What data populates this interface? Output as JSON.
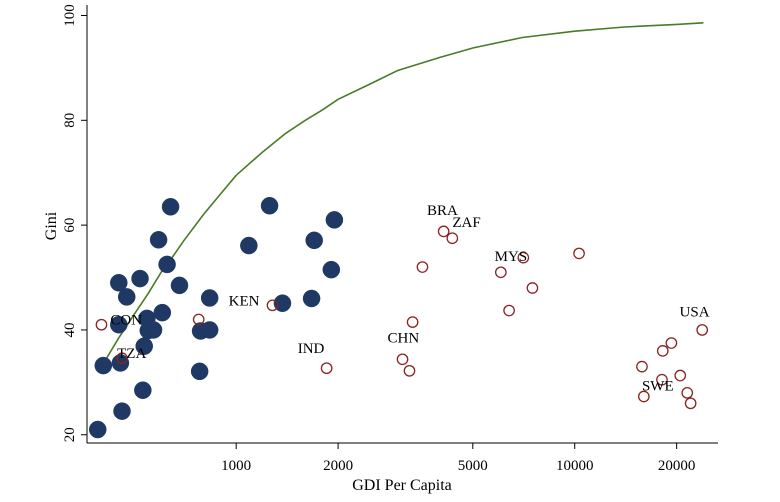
{
  "chart_data": {
    "type": "scatter",
    "title": "",
    "xlabel": "GDI Per Capita",
    "ylabel": "Gini",
    "xscale": "log",
    "xlim": [
      370,
      26500
    ],
    "ylim": [
      19,
      102
    ],
    "grid": false,
    "x_ticks": [
      {
        "value": 1000,
        "label": "1000"
      },
      {
        "value": 2000,
        "label": "2000"
      },
      {
        "value": 5000,
        "label": "5000"
      },
      {
        "value": 10000,
        "label": "10000"
      },
      {
        "value": 20000,
        "label": "20000"
      }
    ],
    "y_ticks": [
      {
        "value": 20,
        "label": "20"
      },
      {
        "value": 40,
        "label": "40"
      },
      {
        "value": 60,
        "label": "60"
      },
      {
        "value": 80,
        "label": "80"
      },
      {
        "value": 100,
        "label": "100"
      }
    ],
    "series": [
      {
        "style": "filled",
        "color": "#1f3864",
        "points": [
          [
            390,
            21
          ],
          [
            405,
            33.2
          ],
          [
            450,
            49
          ],
          [
            450,
            41
          ],
          [
            455,
            33.7
          ],
          [
            460,
            24.5
          ],
          [
            475,
            46.3
          ],
          [
            520,
            49.8
          ],
          [
            530,
            28.5
          ],
          [
            535,
            36.9
          ],
          [
            545,
            42.2
          ],
          [
            550,
            39.9
          ],
          [
            570,
            40
          ],
          [
            590,
            57.2
          ],
          [
            605,
            43.3
          ],
          [
            625,
            52.5
          ],
          [
            640,
            63.5
          ],
          [
            680,
            48.5
          ],
          [
            780,
            32.1
          ],
          [
            785,
            39.8
          ],
          [
            835,
            46.1
          ],
          [
            835,
            40
          ],
          [
            1090,
            56.1
          ],
          [
            1255,
            63.7
          ],
          [
            1370,
            45.1
          ],
          [
            1670,
            46
          ],
          [
            1700,
            57.1
          ],
          [
            1910,
            51.5
          ],
          [
            1950,
            61
          ]
        ]
      },
      {
        "style": "hollow",
        "color": "#8b2323",
        "points": [
          [
            400,
            41
          ],
          [
            460,
            34.6
          ],
          [
            775,
            42
          ],
          [
            1280,
            44.7
          ],
          [
            1850,
            32.7
          ],
          [
            3100,
            34.4
          ],
          [
            3250,
            32.2
          ],
          [
            3320,
            41.5
          ],
          [
            3550,
            52
          ],
          [
            4100,
            58.8
          ],
          [
            4350,
            57.5
          ],
          [
            6050,
            51
          ],
          [
            6400,
            43.7
          ],
          [
            7050,
            53.8
          ],
          [
            7500,
            48
          ],
          [
            10300,
            54.6
          ],
          [
            15800,
            33
          ],
          [
            16000,
            27.3
          ],
          [
            18100,
            30.5
          ],
          [
            18200,
            36
          ],
          [
            19300,
            37.5
          ],
          [
            20500,
            31.3
          ],
          [
            21500,
            28
          ],
          [
            22000,
            26
          ],
          [
            23800,
            40
          ]
        ]
      }
    ],
    "labels": [
      {
        "text": "CON",
        "x": 425,
        "y": 41
      },
      {
        "text": "TZA",
        "x": 445,
        "y": 34.6
      },
      {
        "text": "KEN",
        "x": 950,
        "y": 44.7
      },
      {
        "text": "IND",
        "x": 1520,
        "y": 35.6
      },
      {
        "text": "CHN",
        "x": 2800,
        "y": 37.6
      },
      {
        "text": "BRA",
        "x": 3660,
        "y": 61.9
      },
      {
        "text": "ZAF",
        "x": 4350,
        "y": 59.6
      },
      {
        "text": "MYS",
        "x": 5800,
        "y": 53.2
      },
      {
        "text": "USA",
        "x": 20400,
        "y": 42.6
      },
      {
        "text": "SWE",
        "x": 15800,
        "y": 28.4
      }
    ],
    "fit_curve": {
      "color": "#4a7a2a",
      "points": [
        [
          400,
          33
        ],
        [
          450,
          38.5
        ],
        [
          500,
          43
        ],
        [
          550,
          47
        ],
        [
          600,
          51
        ],
        [
          650,
          54
        ],
        [
          700,
          57
        ],
        [
          800,
          62
        ],
        [
          900,
          66
        ],
        [
          1000,
          69.5
        ],
        [
          1200,
          74
        ],
        [
          1400,
          77.5
        ],
        [
          1600,
          80
        ],
        [
          1800,
          82
        ],
        [
          2000,
          84
        ],
        [
          2500,
          87
        ],
        [
          3000,
          89.5
        ],
        [
          4000,
          92
        ],
        [
          5000,
          93.8
        ],
        [
          7000,
          95.8
        ],
        [
          10000,
          97
        ],
        [
          14000,
          97.8
        ],
        [
          20000,
          98.3
        ],
        [
          24000,
          98.6
        ]
      ]
    }
  }
}
